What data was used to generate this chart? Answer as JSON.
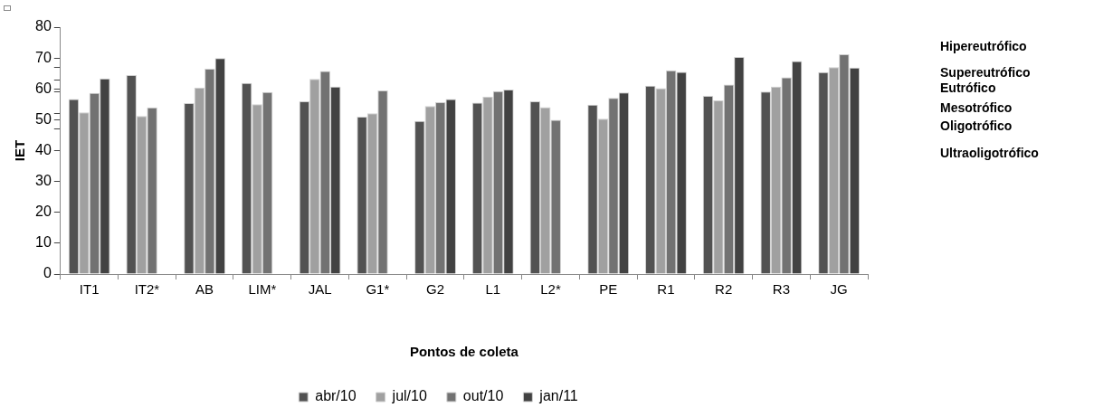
{
  "chart_data": {
    "type": "bar",
    "xlabel": "Pontos de coleta",
    "ylabel": "IET",
    "categories": [
      "IT1",
      "IT2*",
      "AB",
      "LIM*",
      "JAL",
      "G1*",
      "G2",
      "L1",
      "L2*",
      "PE",
      "R1",
      "R2",
      "R3",
      "JG"
    ],
    "series": [
      {
        "name": "abr/10",
        "color": "#525252",
        "values": [
          56.7,
          64.5,
          55.4,
          61.9,
          56.0,
          51.0,
          49.6,
          55.5,
          56.0,
          54.9,
          61.0,
          57.7,
          59.1,
          65.4
        ]
      },
      {
        "name": "jul/10",
        "color": "#a0a0a0",
        "values": [
          52.4,
          51.2,
          60.4,
          55.0,
          63.2,
          52.1,
          54.4,
          57.4,
          54.1,
          50.3,
          60.2,
          56.3,
          60.7,
          67.0
        ]
      },
      {
        "name": "out/10",
        "color": "#727272",
        "values": [
          58.7,
          54.0,
          66.5,
          59.0,
          65.8,
          59.5,
          55.7,
          59.3,
          50.0,
          57.1,
          66.0,
          61.4,
          63.7,
          71.2
        ]
      },
      {
        "name": "jan/11",
        "color": "#424242",
        "values": [
          63.4,
          null,
          70.0,
          null,
          60.7,
          null,
          56.7,
          59.8,
          null,
          58.8,
          65.5,
          70.3,
          69.0,
          66.9
        ]
      }
    ],
    "ylim": [
      0,
      80
    ],
    "yticks": [
      0,
      10,
      20,
      30,
      40,
      {
        "value": 47,
        "label": null
      },
      50,
      {
        "value": 52,
        "label": null
      },
      {
        "value": 59,
        "label": null
      },
      60,
      {
        "value": 63,
        "label": null
      },
      {
        "value": 67,
        "label": null
      },
      70,
      80
    ],
    "annotations": [
      "Hipereutrófico",
      "Supereutrófico",
      "Eutrófico",
      "Mesotrófico",
      "Oligotrófico",
      "Ultraoligotrófico"
    ],
    "grid": false,
    "legend": "bottom"
  }
}
